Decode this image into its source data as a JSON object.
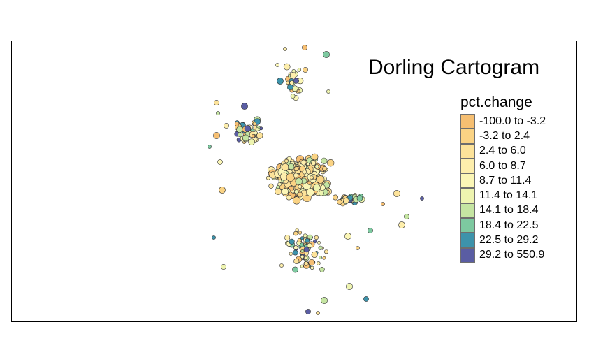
{
  "title": "Dorling Cartogram",
  "legend": {
    "title": "pct.change",
    "classes": [
      {
        "label": "-100.0 to -3.2",
        "color": "#f6bf72"
      },
      {
        "label": "-3.2 to 2.4",
        "color": "#fad384"
      },
      {
        "label": "2.4 to 6.0",
        "color": "#fde39a"
      },
      {
        "label": "6.0 to 8.7",
        "color": "#fdeeac"
      },
      {
        "label": "8.7 to 11.4",
        "color": "#fbf6b6"
      },
      {
        "label": "11.4 to 14.1",
        "color": "#eef4b0"
      },
      {
        "label": "14.1 to 18.4",
        "color": "#c5e5a2"
      },
      {
        "label": "18.4 to 22.5",
        "color": "#7dc9a0"
      },
      {
        "label": "22.5 to 29.2",
        "color": "#3d93ab"
      },
      {
        "label": "29.2 to 550.9",
        "color": "#5a5da3"
      }
    ]
  },
  "chart_data": {
    "type": "cartogram",
    "variable": "pct.change",
    "symbol": "circle",
    "outline_color": "#333333"
  }
}
